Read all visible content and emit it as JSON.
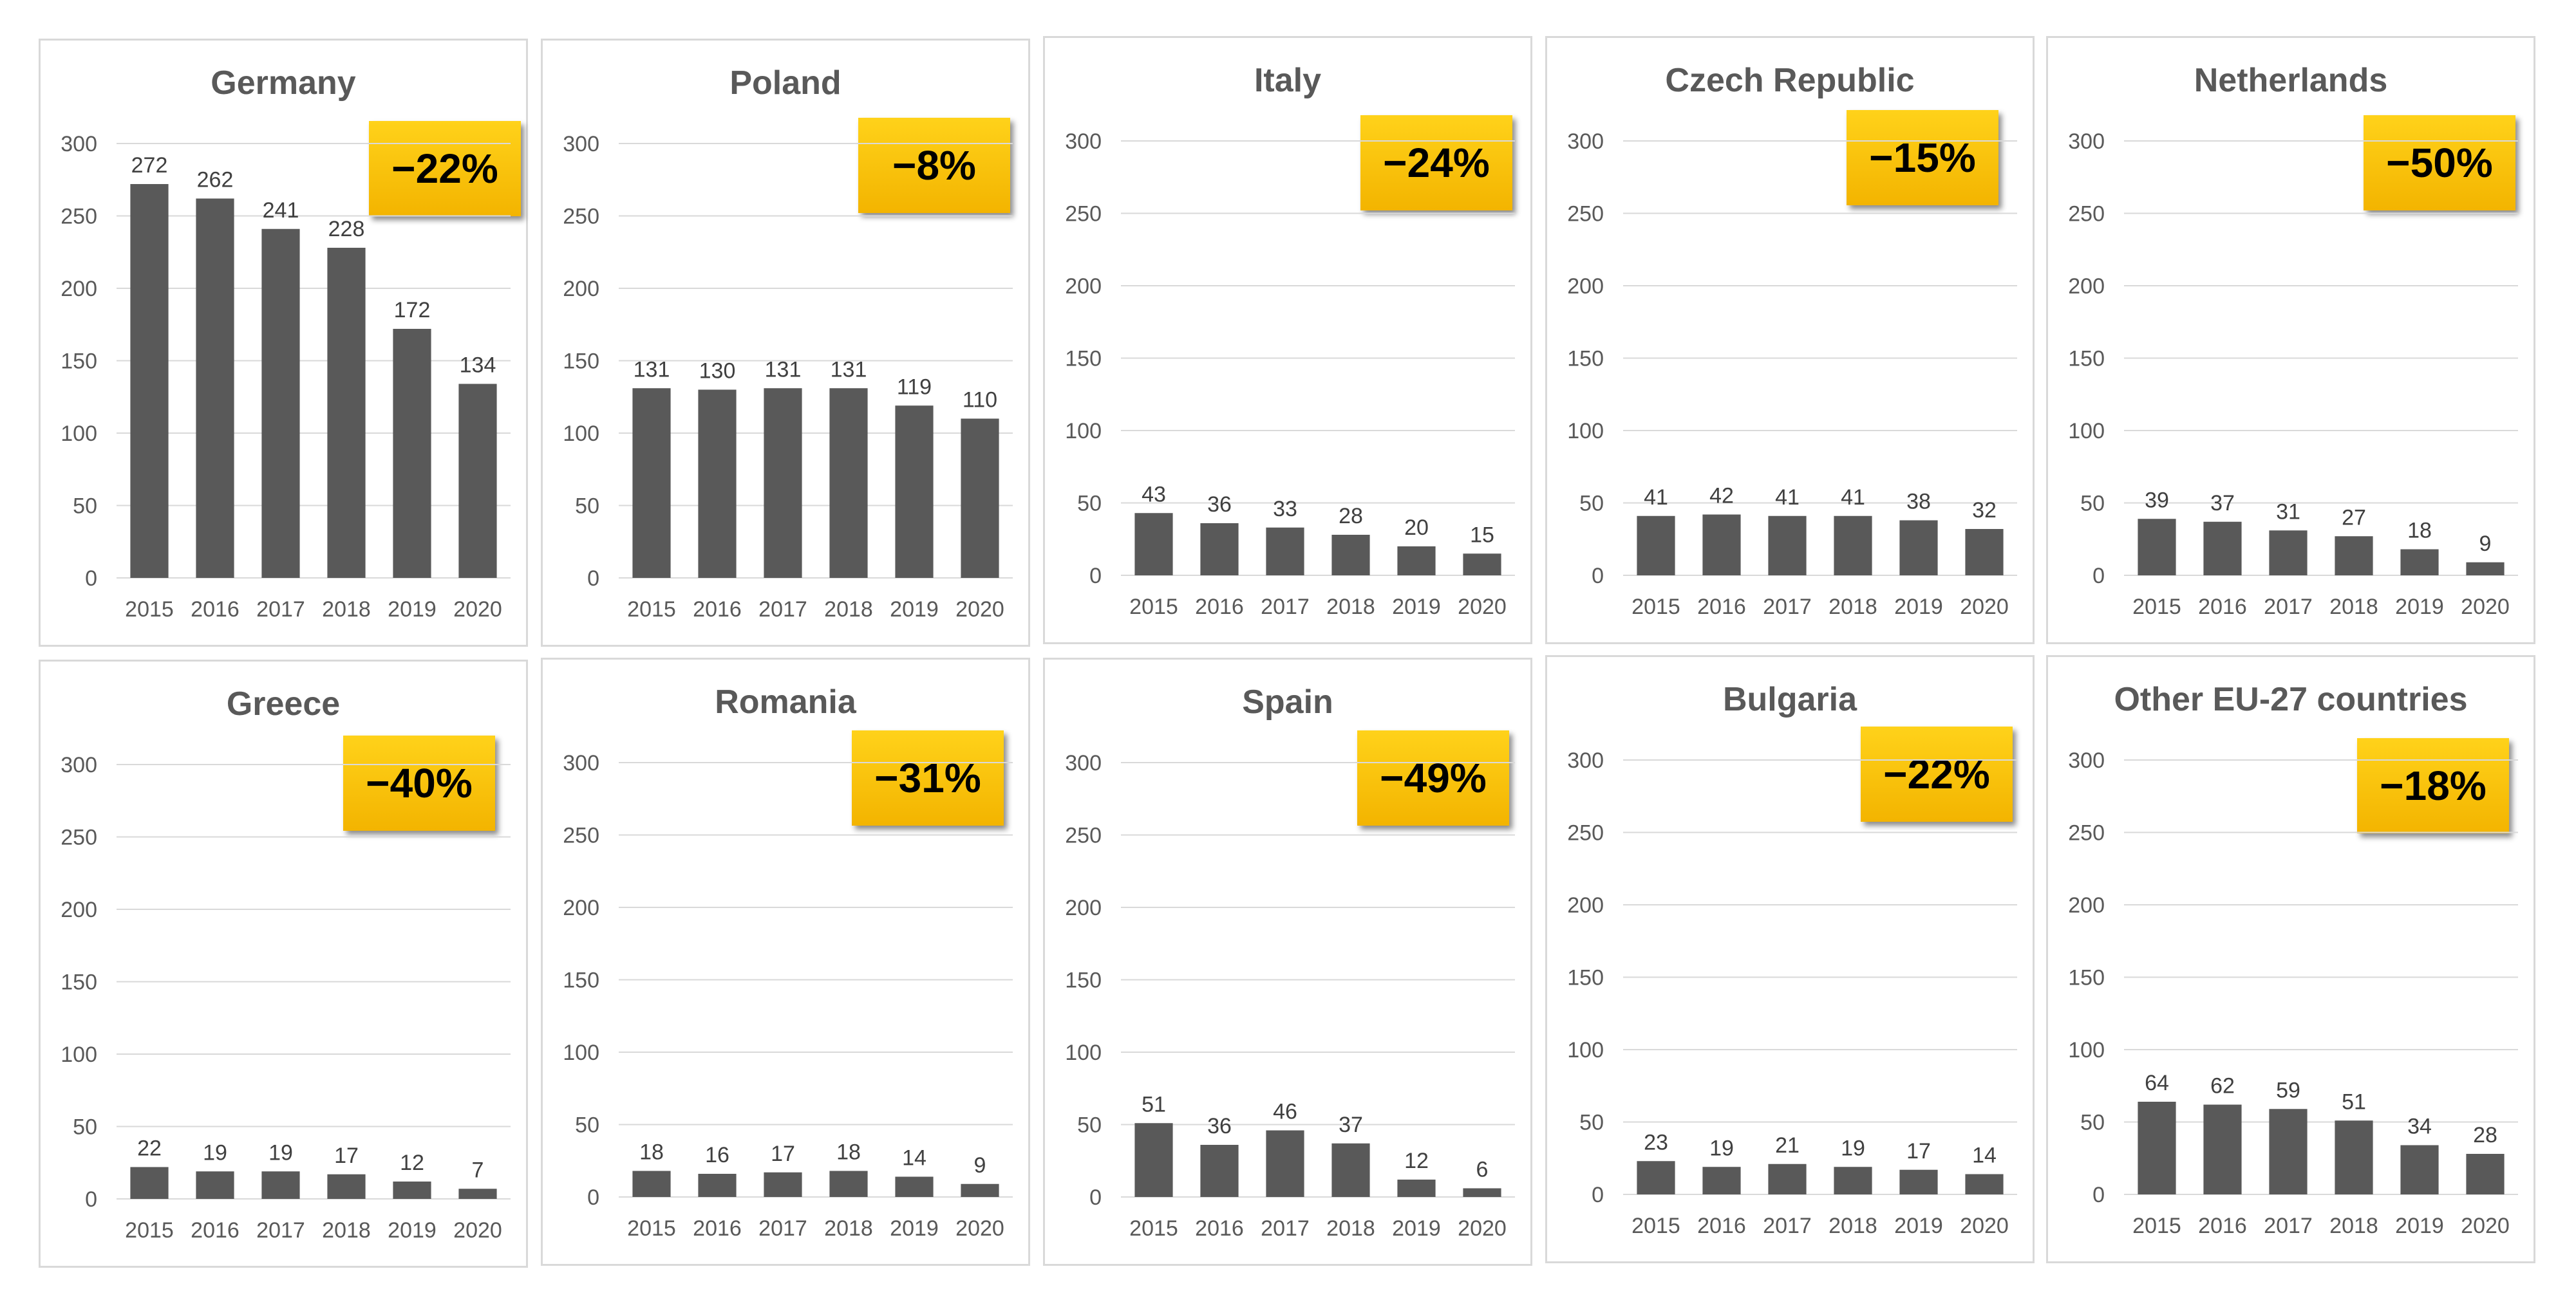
{
  "chart_data": [
    {
      "type": "bar",
      "title": "Germany",
      "badge": "−22%",
      "categories": [
        "2015",
        "2016",
        "2017",
        "2018",
        "2019",
        "2020"
      ],
      "values": [
        272,
        262,
        241,
        228,
        172,
        134
      ],
      "yticks": [
        "0",
        "50",
        "100",
        "150",
        "200",
        "250",
        "300"
      ],
      "ylim": [
        0,
        300
      ]
    },
    {
      "type": "bar",
      "title": "Poland",
      "badge": "−8%",
      "categories": [
        "2015",
        "2016",
        "2017",
        "2018",
        "2019",
        "2020"
      ],
      "values": [
        131,
        130,
        131,
        131,
        119,
        110
      ],
      "yticks": [
        "0",
        "50",
        "100",
        "150",
        "200",
        "250",
        "300"
      ],
      "ylim": [
        0,
        300
      ]
    },
    {
      "type": "bar",
      "title": "Italy",
      "badge": "−24%",
      "categories": [
        "2015",
        "2016",
        "2017",
        "2018",
        "2019",
        "2020"
      ],
      "values": [
        43,
        36,
        33,
        28,
        20,
        15
      ],
      "yticks": [
        "0",
        "50",
        "100",
        "150",
        "200",
        "250",
        "300"
      ],
      "ylim": [
        0,
        300
      ]
    },
    {
      "type": "bar",
      "title": "Czech Republic",
      "badge": "−15%",
      "categories": [
        "2015",
        "2016",
        "2017",
        "2018",
        "2019",
        "2020"
      ],
      "values": [
        41,
        42,
        41,
        41,
        38,
        32
      ],
      "yticks": [
        "0",
        "50",
        "100",
        "150",
        "200",
        "250",
        "300"
      ],
      "ylim": [
        0,
        300
      ]
    },
    {
      "type": "bar",
      "title": "Netherlands",
      "badge": "−50%",
      "categories": [
        "2015",
        "2016",
        "2017",
        "2018",
        "2019",
        "2020"
      ],
      "values": [
        39,
        37,
        31,
        27,
        18,
        9
      ],
      "yticks": [
        "0",
        "50",
        "100",
        "150",
        "200",
        "250",
        "300"
      ],
      "ylim": [
        0,
        300
      ]
    },
    {
      "type": "bar",
      "title": "Greece",
      "badge": "−40%",
      "categories": [
        "2015",
        "2016",
        "2017",
        "2018",
        "2019",
        "2020"
      ],
      "values": [
        22,
        19,
        19,
        17,
        12,
        7
      ],
      "yticks": [
        "0",
        "50",
        "100",
        "150",
        "200",
        "250",
        "300"
      ],
      "ylim": [
        0,
        300
      ]
    },
    {
      "type": "bar",
      "title": "Romania",
      "badge": "−31%",
      "categories": [
        "2015",
        "2016",
        "2017",
        "2018",
        "2019",
        "2020"
      ],
      "values": [
        18,
        16,
        17,
        18,
        14,
        9
      ],
      "yticks": [
        "0",
        "50",
        "100",
        "150",
        "200",
        "250",
        "300"
      ],
      "ylim": [
        0,
        300
      ]
    },
    {
      "type": "bar",
      "title": "Spain",
      "badge": "−49%",
      "categories": [
        "2015",
        "2016",
        "2017",
        "2018",
        "2019",
        "2020"
      ],
      "values": [
        51,
        36,
        46,
        37,
        12,
        6
      ],
      "yticks": [
        "0",
        "50",
        "100",
        "150",
        "200",
        "250",
        "300"
      ],
      "ylim": [
        0,
        300
      ]
    },
    {
      "type": "bar",
      "title": "Bulgaria",
      "badge": "−22%",
      "categories": [
        "2015",
        "2016",
        "2017",
        "2018",
        "2019",
        "2020"
      ],
      "values": [
        23,
        19,
        21,
        19,
        17,
        14
      ],
      "yticks": [
        "0",
        "50",
        "100",
        "150",
        "200",
        "250",
        "300"
      ],
      "ylim": [
        0,
        300
      ]
    },
    {
      "type": "bar",
      "title": "Other EU-27 countries",
      "badge": "−18%",
      "categories": [
        "2015",
        "2016",
        "2017",
        "2018",
        "2019",
        "2020"
      ],
      "values": [
        64,
        62,
        59,
        51,
        34,
        28
      ],
      "yticks": [
        "0",
        "50",
        "100",
        "150",
        "200",
        "250",
        "300"
      ],
      "ylim": [
        0,
        300
      ]
    }
  ],
  "colors": {
    "bar": "#595959",
    "badge": "#f7c21a"
  }
}
